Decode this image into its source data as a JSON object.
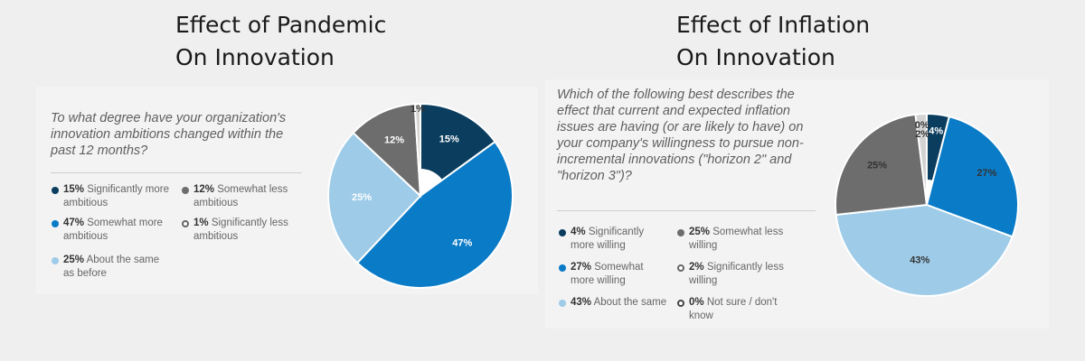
{
  "titles": {
    "pandemic": {
      "line1": "Effect of Pandemic",
      "line2": "On Innovation"
    },
    "inflation": {
      "line1": "Effect of Inflation",
      "line2": "On Innovation"
    }
  },
  "colors": {
    "dark_navy": "#0b3d5e",
    "blue": "#0a7bc6",
    "light_blue": "#9ecbe8",
    "gray": "#6d6d6d",
    "light_gray": "#d3d3d3",
    "white": "#ffffff"
  },
  "chart_data": [
    {
      "type": "pie",
      "style": "donut",
      "title": "Effect of Pandemic On Innovation",
      "question": "To what degree have your organization's innovation ambitions changed within the past 12 months?",
      "slices": [
        {
          "value": 15,
          "label": "15%",
          "bold": "15%",
          "rest": " Significantly more ambitious",
          "color": "#0b3d5e",
          "text_color": "#ffffff"
        },
        {
          "value": 47,
          "label": "47%",
          "bold": "47%",
          "rest": " Somewhat more ambitious",
          "color": "#0a7bc6",
          "text_color": "#ffffff"
        },
        {
          "value": 25,
          "label": "25%",
          "bold": "25%",
          "rest": " About the same as before",
          "color": "#9ecbe8",
          "text_color": "#ffffff"
        },
        {
          "value": 12,
          "label": "12%",
          "bold": "12%",
          "rest": " Somewhat less ambitious",
          "color": "#6d6d6d",
          "text_color": "#ffffff"
        },
        {
          "value": 1,
          "label": "1%",
          "bold": "1%",
          "rest": " Significantly less ambitious",
          "color": "#d3d3d3",
          "text_color": "#333333"
        }
      ]
    },
    {
      "type": "pie",
      "style": "donut",
      "title": "Effect of Inflation On Innovation",
      "question": "Which of the following best describes the effect that current and expected inflation issues are having (or are likely to have) on your company's willingness to pursue non-incremental innovations (\"horizon 2\" and \"horizon 3\")?",
      "slices": [
        {
          "value": 4,
          "label": "4%",
          "bold": "4%",
          "rest": " Significantly more willing",
          "color": "#0b3d5e",
          "text_color": "#ffffff"
        },
        {
          "value": 27,
          "label": "27%",
          "bold": "27%",
          "rest": " Somewhat more willing",
          "color": "#0a7bc6",
          "text_color": "#333333"
        },
        {
          "value": 43,
          "label": "43%",
          "bold": "43%",
          "rest": " About the same",
          "color": "#9ecbe8",
          "text_color": "#333333"
        },
        {
          "value": 25,
          "label": "25%",
          "bold": "25%",
          "rest": " Somewhat less willing",
          "color": "#6d6d6d",
          "text_color": "#333333"
        },
        {
          "value": 2,
          "label": "2%",
          "bold": "2%",
          "rest": " Significantly less willing",
          "color": "#d3d3d3",
          "text_color": "#333333"
        },
        {
          "value": 0,
          "label": "0%",
          "bold": "0%",
          "rest": " Not sure / don't know",
          "color": "#ffffff",
          "text_color": "#333333"
        }
      ]
    }
  ]
}
